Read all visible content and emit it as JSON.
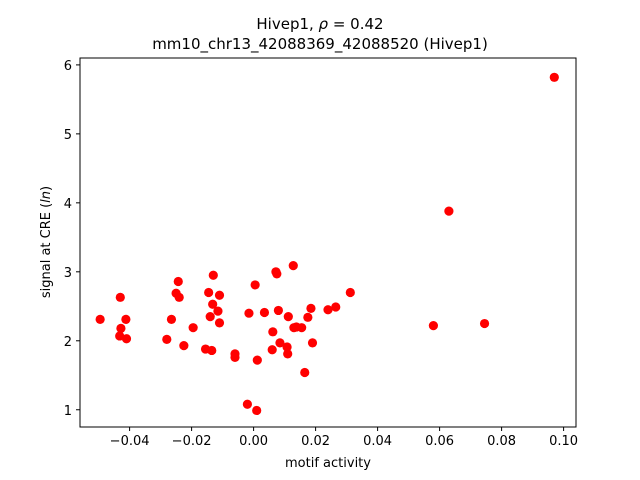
{
  "chart_data": {
    "type": "scatter",
    "title_prefix": "Hivep1, ",
    "title_rho_symbol": "ρ",
    "title_rho_value": " = 0.42",
    "subtitle": "mm10_chr13_42088369_42088520 (Hivep1)",
    "xlabel": "motif activity",
    "ylabel_prefix": "signal at CRE (",
    "ylabel_italic": "ln",
    "ylabel_suffix": ")",
    "xlim": [
      -0.056,
      0.104
    ],
    "ylim": [
      0.75,
      6.1
    ],
    "xticks": [
      -0.04,
      -0.02,
      0.0,
      0.02,
      0.04,
      0.06,
      0.08,
      0.1
    ],
    "xtick_labels": [
      "−0.04",
      "−0.02",
      "0.00",
      "0.02",
      "0.04",
      "0.06",
      "0.08",
      "0.10"
    ],
    "yticks": [
      1,
      2,
      3,
      4,
      5,
      6
    ],
    "ytick_labels": [
      "1",
      "2",
      "3",
      "4",
      "5",
      "6"
    ],
    "point_color": "#ff0000",
    "grid": false,
    "legend": "none",
    "points": [
      {
        "x": -0.0495,
        "y": 2.31
      },
      {
        "x": -0.043,
        "y": 2.63
      },
      {
        "x": -0.0428,
        "y": 2.18
      },
      {
        "x": -0.0432,
        "y": 2.07
      },
      {
        "x": -0.0412,
        "y": 2.31
      },
      {
        "x": -0.041,
        "y": 2.03
      },
      {
        "x": -0.028,
        "y": 2.02
      },
      {
        "x": -0.0265,
        "y": 2.31
      },
      {
        "x": -0.025,
        "y": 2.69
      },
      {
        "x": -0.0243,
        "y": 2.86
      },
      {
        "x": -0.024,
        "y": 2.63
      },
      {
        "x": -0.0225,
        "y": 1.93
      },
      {
        "x": -0.0195,
        "y": 2.19
      },
      {
        "x": -0.0155,
        "y": 1.88
      },
      {
        "x": -0.0145,
        "y": 2.7
      },
      {
        "x": -0.014,
        "y": 2.35
      },
      {
        "x": -0.0135,
        "y": 1.86
      },
      {
        "x": -0.0132,
        "y": 2.53
      },
      {
        "x": -0.013,
        "y": 2.95
      },
      {
        "x": -0.0115,
        "y": 2.43
      },
      {
        "x": -0.011,
        "y": 2.66
      },
      {
        "x": -0.011,
        "y": 2.26
      },
      {
        "x": -0.006,
        "y": 1.81
      },
      {
        "x": -0.006,
        "y": 1.76
      },
      {
        "x": -0.002,
        "y": 1.08
      },
      {
        "x": -0.0015,
        "y": 2.4
      },
      {
        "x": 0.0005,
        "y": 2.81
      },
      {
        "x": 0.001,
        "y": 0.99
      },
      {
        "x": 0.0012,
        "y": 1.72
      },
      {
        "x": 0.0035,
        "y": 2.41
      },
      {
        "x": 0.006,
        "y": 1.87
      },
      {
        "x": 0.0062,
        "y": 2.13
      },
      {
        "x": 0.0072,
        "y": 3.0
      },
      {
        "x": 0.0075,
        "y": 2.97
      },
      {
        "x": 0.008,
        "y": 2.44
      },
      {
        "x": 0.0085,
        "y": 1.97
      },
      {
        "x": 0.0108,
        "y": 1.91
      },
      {
        "x": 0.011,
        "y": 1.81
      },
      {
        "x": 0.0112,
        "y": 2.35
      },
      {
        "x": 0.0128,
        "y": 3.09
      },
      {
        "x": 0.013,
        "y": 2.19
      },
      {
        "x": 0.0138,
        "y": 2.2
      },
      {
        "x": 0.0155,
        "y": 2.19
      },
      {
        "x": 0.0165,
        "y": 1.54
      },
      {
        "x": 0.0175,
        "y": 2.34
      },
      {
        "x": 0.0185,
        "y": 2.47
      },
      {
        "x": 0.019,
        "y": 1.97
      },
      {
        "x": 0.024,
        "y": 2.45
      },
      {
        "x": 0.0265,
        "y": 2.49
      },
      {
        "x": 0.0312,
        "y": 2.7
      },
      {
        "x": 0.058,
        "y": 2.22
      },
      {
        "x": 0.063,
        "y": 3.88
      },
      {
        "x": 0.0745,
        "y": 2.25
      },
      {
        "x": 0.097,
        "y": 5.82
      }
    ]
  }
}
